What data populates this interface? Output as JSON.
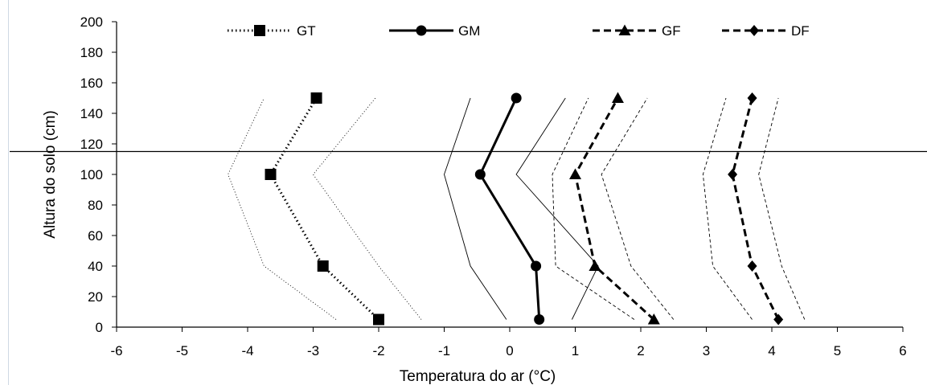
{
  "chart_data": {
    "type": "line",
    "title": "",
    "xlabel": "Temperatura do ar (°C)",
    "ylabel": "Altura do solo (cm)",
    "xlim": [
      -6,
      6
    ],
    "ylim": [
      0,
      200
    ],
    "xticks": [
      -6,
      -5,
      -4,
      -3,
      -2,
      -1,
      0,
      1,
      2,
      3,
      4,
      5,
      6
    ],
    "yticks": [
      0,
      20,
      40,
      60,
      80,
      100,
      120,
      140,
      160,
      180,
      200
    ],
    "grid": false,
    "legend_position": "top",
    "reference_line": {
      "y": 115
    },
    "series": [
      {
        "name": "GT",
        "marker": "square",
        "line_style": "dotted",
        "points": [
          {
            "x": -2.0,
            "y": 5
          },
          {
            "x": -2.85,
            "y": 40
          },
          {
            "x": -3.65,
            "y": 100
          },
          {
            "x": -2.95,
            "y": 150
          }
        ],
        "band_lower": [
          {
            "x": -2.65,
            "y": 5
          },
          {
            "x": -3.75,
            "y": 40
          },
          {
            "x": -4.3,
            "y": 100
          },
          {
            "x": -3.75,
            "y": 150
          }
        ],
        "band_upper": [
          {
            "x": -1.35,
            "y": 5
          },
          {
            "x": -2.0,
            "y": 40
          },
          {
            "x": -3.0,
            "y": 100
          },
          {
            "x": -2.05,
            "y": 150
          }
        ]
      },
      {
        "name": "GM",
        "marker": "circle",
        "line_style": "solid",
        "points": [
          {
            "x": 0.45,
            "y": 5
          },
          {
            "x": 0.4,
            "y": 40
          },
          {
            "x": -0.45,
            "y": 100
          },
          {
            "x": 0.1,
            "y": 150
          }
        ],
        "band_lower": [
          {
            "x": -0.05,
            "y": 5
          },
          {
            "x": -0.6,
            "y": 40
          },
          {
            "x": -1.0,
            "y": 100
          },
          {
            "x": -0.6,
            "y": 150
          }
        ],
        "band_upper": [
          {
            "x": 0.95,
            "y": 5
          },
          {
            "x": 1.35,
            "y": 40
          },
          {
            "x": 0.1,
            "y": 100
          },
          {
            "x": 0.85,
            "y": 150
          }
        ]
      },
      {
        "name": "GF",
        "marker": "triangle",
        "line_style": "dashed",
        "points": [
          {
            "x": 2.2,
            "y": 5
          },
          {
            "x": 1.3,
            "y": 40
          },
          {
            "x": 1.0,
            "y": 100
          },
          {
            "x": 1.65,
            "y": 150
          }
        ],
        "band_lower": [
          {
            "x": 1.9,
            "y": 5
          },
          {
            "x": 0.7,
            "y": 40
          },
          {
            "x": 0.65,
            "y": 100
          },
          {
            "x": 1.2,
            "y": 150
          }
        ],
        "band_upper": [
          {
            "x": 2.5,
            "y": 5
          },
          {
            "x": 1.85,
            "y": 40
          },
          {
            "x": 1.4,
            "y": 100
          },
          {
            "x": 2.1,
            "y": 150
          }
        ]
      },
      {
        "name": "DF",
        "marker": "diamond",
        "line_style": "dashed",
        "points": [
          {
            "x": 4.1,
            "y": 5
          },
          {
            "x": 3.7,
            "y": 40
          },
          {
            "x": 3.4,
            "y": 100
          },
          {
            "x": 3.7,
            "y": 150
          }
        ],
        "band_lower": [
          {
            "x": 3.7,
            "y": 5
          },
          {
            "x": 3.1,
            "y": 40
          },
          {
            "x": 2.95,
            "y": 100
          },
          {
            "x": 3.3,
            "y": 150
          }
        ],
        "band_upper": [
          {
            "x": 4.5,
            "y": 5
          },
          {
            "x": 4.15,
            "y": 40
          },
          {
            "x": 3.8,
            "y": 100
          },
          {
            "x": 4.1,
            "y": 150
          }
        ]
      }
    ]
  }
}
